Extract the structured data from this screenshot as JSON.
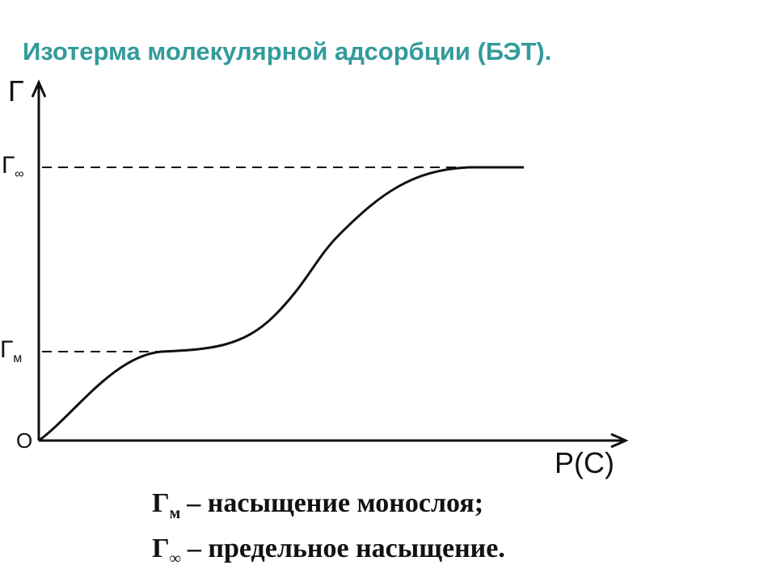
{
  "title": "Изотерма молекулярной адсорбции (БЭТ).",
  "y_axis": {
    "label": "Г"
  },
  "x_axis": {
    "label": "Р(С)"
  },
  "origin": "О",
  "levels": [
    {
      "symbol": "Г",
      "sub": "∞"
    },
    {
      "symbol": "Г",
      "sub": "м"
    }
  ],
  "notes": [
    {
      "symbol": "Г",
      "sub": "м",
      "text": "– насыщение монослоя;"
    },
    {
      "symbol": "Г",
      "sub": "∞",
      "text": "– предельное насыщение."
    }
  ]
}
